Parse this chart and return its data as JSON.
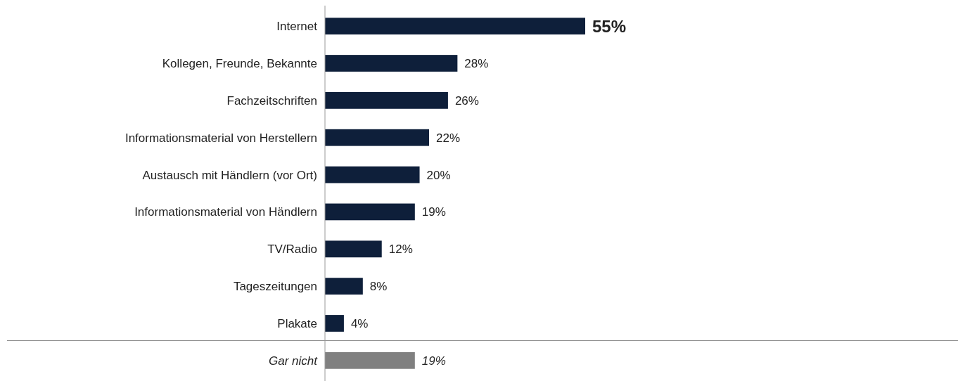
{
  "chart_data": {
    "type": "bar",
    "orientation": "horizontal",
    "data_labels": true,
    "value_labels": [
      "55%",
      "28%",
      "26%",
      "22%",
      "20%",
      "19%",
      "12%",
      "8%",
      "4%",
      "19%"
    ],
    "categories": [
      "Internet",
      "Kollegen, Freunde, Bekannte",
      "Fachzeitschriften",
      "Informationsmaterial von Herstellern",
      "Austausch mit Händlern (vor Ort)",
      "Informationsmaterial von Händlern",
      "TV/Radio",
      "Tageszeitungen",
      "Plakate",
      "Gar nicht"
    ],
    "values": [
      55,
      28,
      26,
      22,
      20,
      19,
      12,
      8,
      4,
      19
    ],
    "colors": [
      "#0e1f3a",
      "#0e1f3a",
      "#0e1f3a",
      "#0e1f3a",
      "#0e1f3a",
      "#0e1f3a",
      "#0e1f3a",
      "#0e1f3a",
      "#0e1f3a",
      "#808080"
    ]
  }
}
